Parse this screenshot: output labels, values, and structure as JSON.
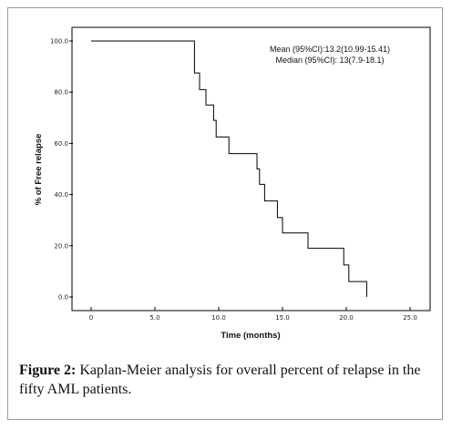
{
  "chart_data": {
    "type": "line",
    "title": "",
    "xlabel": "Time (months)",
    "ylabel": "% of Free relapse",
    "xlim": [
      0,
      25
    ],
    "ylim": [
      0,
      100
    ],
    "x_ticks": [
      "0",
      "5.0",
      "10.0",
      "15.0",
      "20.0",
      "25.0"
    ],
    "y_ticks": [
      "0.0",
      "20.0",
      "40.0",
      "60.0",
      "80.0",
      "100.0"
    ],
    "grid": false,
    "series": [
      {
        "step": true,
        "x": [
          0,
          8.1,
          8.1,
          8.5,
          8.5,
          9.0,
          9.0,
          9.6,
          9.6,
          9.8,
          9.8,
          10.8,
          10.8,
          13.0,
          13.0,
          13.2,
          13.2,
          13.6,
          13.6,
          14.6,
          14.6,
          15.0,
          15.0,
          17.0,
          17.0,
          19.8,
          19.8,
          20.2,
          20.2,
          21.6,
          21.6
        ],
        "y": [
          100,
          100,
          87.5,
          87.5,
          81,
          81,
          75,
          75,
          69,
          69,
          62.5,
          62.5,
          56,
          56,
          50,
          50,
          44,
          44,
          37.5,
          37.5,
          31,
          31,
          25,
          25,
          19,
          19,
          12.5,
          12.5,
          6,
          6,
          0
        ]
      }
    ],
    "annotations": [
      "Mean (95%CI):13.2(10.99-15.41)",
      "Median (95%CI): 13(7.9-18.1)"
    ]
  },
  "caption": {
    "label": "Figure 2:",
    "text": " Kaplan-Meier analysis for overall percent of relapse in the fifty AML patients."
  }
}
